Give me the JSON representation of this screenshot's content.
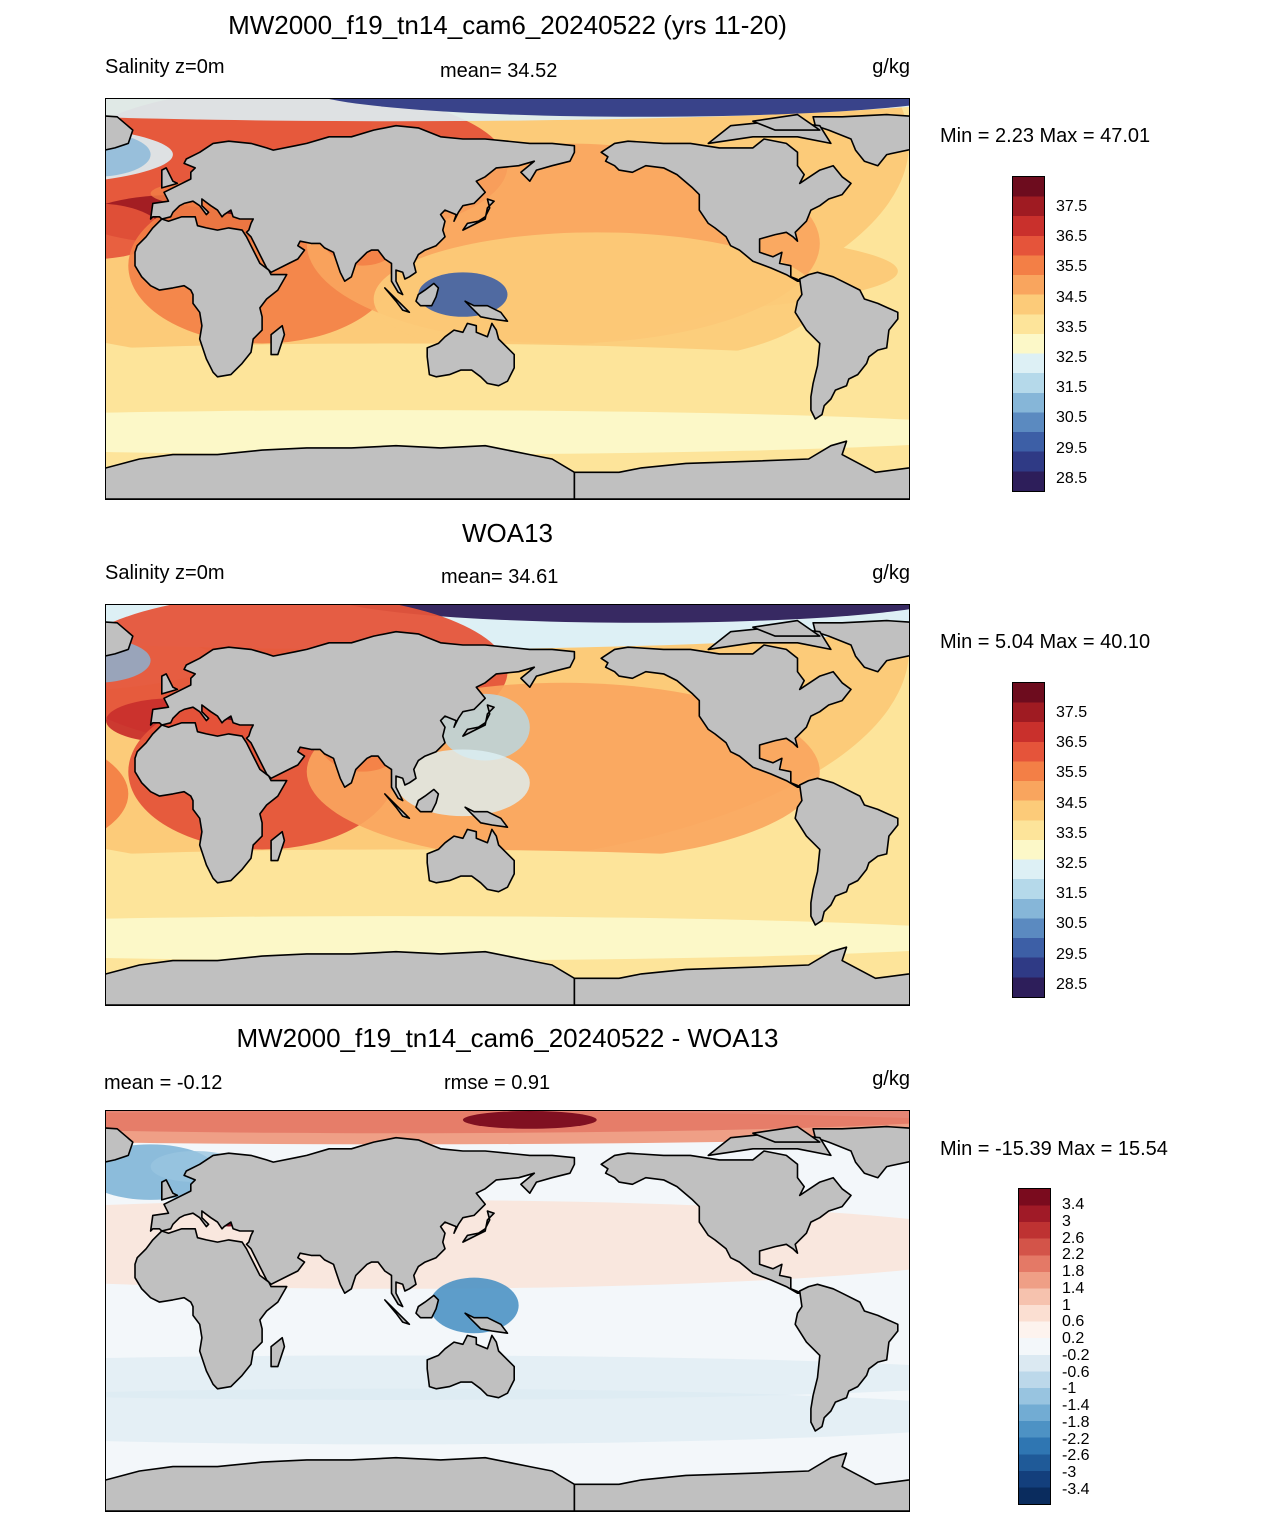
{
  "panels": [
    {
      "title": "MW2000_f19_tn14_cam6_20240522 (yrs 11-20)",
      "left_label": "Salinity z=0m",
      "center_label": "mean=  34.52",
      "units": "g/kg",
      "minmax": "Min =   2.23 Max =  47.01",
      "field": "model",
      "colorbar": {
        "colors": [
          "#2d1e5a",
          "#2f3a85",
          "#3d5fa6",
          "#5b8ac0",
          "#86b6d8",
          "#b5d9ea",
          "#ddf0f5",
          "#fcf8c8",
          "#fde49a",
          "#fccb79",
          "#f9a55e",
          "#f37f46",
          "#e5543a",
          "#c9302c",
          "#9f1b22",
          "#6d0c1e"
        ],
        "ticks": [
          "37.5",
          "36.5",
          "35.5",
          "34.5",
          "33.5",
          "32.5",
          "31.5",
          "30.5",
          "29.5",
          "28.5"
        ]
      }
    },
    {
      "title": "WOA13",
      "left_label": "Salinity z=0m",
      "center_label": "mean=  34.61",
      "units": "g/kg",
      "minmax": "Min =   5.04 Max =  40.10",
      "field": "obs",
      "colorbar": {
        "colors": [
          "#2d1e5a",
          "#2f3a85",
          "#3d5fa6",
          "#5b8ac0",
          "#86b6d8",
          "#b5d9ea",
          "#ddf0f5",
          "#fcf8c8",
          "#fde49a",
          "#fccb79",
          "#f9a55e",
          "#f37f46",
          "#e5543a",
          "#c9302c",
          "#9f1b22",
          "#6d0c1e"
        ],
        "ticks": [
          "37.5",
          "36.5",
          "35.5",
          "34.5",
          "33.5",
          "32.5",
          "31.5",
          "30.5",
          "29.5",
          "28.5"
        ]
      }
    },
    {
      "title": "MW2000_f19_tn14_cam6_20240522 - WOA13",
      "left_label": "mean =  -0.12",
      "center_label": "rmse =   0.91",
      "units": "g/kg",
      "minmax": "Min = -15.39 Max =  15.54",
      "field": "diff",
      "colorbar": {
        "colors": [
          "#0a2c5e",
          "#133f7c",
          "#1f5a98",
          "#2f76b2",
          "#4d92c4",
          "#72acd3",
          "#98c4e0",
          "#bcd8ea",
          "#dbe9f2",
          "#f3f7fa",
          "#fdf3ee",
          "#fbdfd2",
          "#f6c2ae",
          "#ef9f86",
          "#e47966",
          "#d35449",
          "#be3232",
          "#a01a27",
          "#7a0b1e"
        ],
        "ticks": [
          "3.4",
          "3",
          "2.6",
          "2.2",
          "1.8",
          "1.4",
          "1",
          "0.6",
          "0.2",
          "-0.2",
          "-0.6",
          "-1",
          "-1.4",
          "-1.8",
          "-2.2",
          "-2.6",
          "-3",
          "-3.4"
        ]
      }
    }
  ]
}
